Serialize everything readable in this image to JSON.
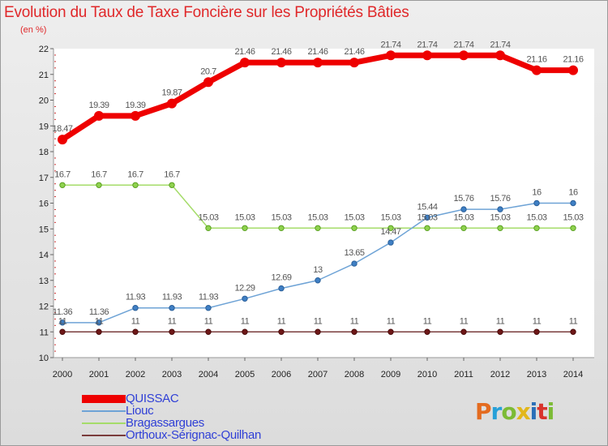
{
  "title": "Evolution du Taux de Taxe Foncière sur les Propriétés Bâties",
  "unit": "(en %)",
  "brand": "Proxiti",
  "chart_data": {
    "type": "line",
    "title": "Evolution du Taux de Taxe Foncière sur les Propriétés Bâties",
    "ylabel": "(en %)",
    "xlabel": "",
    "x": [
      "2000",
      "2001",
      "2002",
      "2003",
      "2004",
      "2005",
      "2006",
      "2007",
      "2008",
      "2009",
      "2010",
      "2011",
      "2012",
      "2013",
      "2014"
    ],
    "yticks": [
      10,
      11,
      12,
      13,
      14,
      15,
      16,
      17,
      18,
      19,
      20,
      21,
      22
    ],
    "ylim": [
      10,
      22
    ],
    "grid": false,
    "legend": "bottom-left",
    "series": [
      {
        "name": "QUISSAC",
        "color": "#ee0000",
        "values": [
          18.47,
          19.39,
          19.39,
          19.87,
          20.7,
          21.46,
          21.46,
          21.46,
          21.46,
          21.74,
          21.74,
          21.74,
          21.74,
          21.16,
          21.16
        ],
        "labels": [
          "18.47",
          "19.39",
          "19.39",
          "19.87",
          "20.7",
          "21.46",
          "21.46",
          "21.46",
          "21.46",
          "21.74",
          "21.74",
          "21.74",
          "21.74",
          "21.16",
          "21.16"
        ]
      },
      {
        "name": "Liouc",
        "color": "#6ea3d6",
        "values": [
          11.36,
          11.36,
          11.93,
          11.93,
          11.93,
          12.29,
          12.69,
          13,
          13.65,
          14.47,
          15.44,
          15.76,
          15.76,
          16,
          16
        ],
        "labels": [
          "11.36",
          "11.36",
          "11.93",
          "11.93",
          "11.93",
          "12.29",
          "12.69",
          "13",
          "13.65",
          "14.47",
          "15.44",
          "15.76",
          "15.76",
          "16",
          "16"
        ]
      },
      {
        "name": "Bragassargues",
        "color": "#a5dc6a",
        "values": [
          16.7,
          16.7,
          16.7,
          16.7,
          15.03,
          15.03,
          15.03,
          15.03,
          15.03,
          15.03,
          15.03,
          15.03,
          15.03,
          15.03,
          15.03
        ],
        "labels": [
          "16.7",
          "16.7",
          "16.7",
          "16.7",
          "15.03",
          "15.03",
          "15.03",
          "15.03",
          "15.03",
          "15.03",
          "15.03",
          "15.03",
          "15.03",
          "15.03",
          "15.03"
        ]
      },
      {
        "name": "Orthoux-Sérignac-Quilhan",
        "color": "#7a3c3c",
        "values": [
          11,
          11,
          11,
          11,
          11,
          11,
          11,
          11,
          11,
          11,
          11,
          11,
          11,
          11,
          11
        ],
        "labels": [
          "11",
          "11",
          "11",
          "11",
          "11",
          "11",
          "11",
          "11",
          "11",
          "11",
          "11",
          "11",
          "11",
          "11",
          "11"
        ]
      }
    ]
  }
}
